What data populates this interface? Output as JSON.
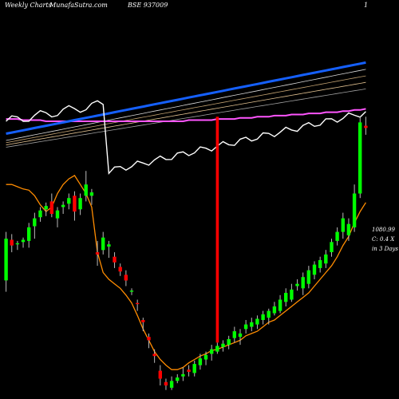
{
  "header": {
    "left": "Weekly Charts",
    "center": "MunafaSutra.com",
    "symbol": "BSE 937009",
    "right": "1"
  },
  "annotation": {
    "price": "1080.99",
    "change": "C: 0.4  X",
    "period": "in 3 Days"
  },
  "colors": {
    "up": "#00ff00",
    "down": "#ff0000",
    "ema_short": "#ff8c00",
    "white_line": "#ffffff",
    "blue_ma": "#1560ff",
    "magenta_ma": "#ff55ff"
  },
  "chart_data": {
    "type": "candlestick",
    "y_scale": "price",
    "candles": [
      {
        "o": 275,
        "h": 318,
        "l": 265,
        "c": 312
      },
      {
        "o": 311,
        "h": 316,
        "l": 300,
        "c": 306
      },
      {
        "o": 307,
        "h": 310,
        "l": 302,
        "c": 308
      },
      {
        "o": 309,
        "h": 313,
        "l": 304,
        "c": 311
      },
      {
        "o": 310,
        "h": 326,
        "l": 304,
        "c": 322
      },
      {
        "o": 323,
        "h": 335,
        "l": 312,
        "c": 330
      },
      {
        "o": 331,
        "h": 340,
        "l": 327,
        "c": 337
      },
      {
        "o": 338,
        "h": 344,
        "l": 332,
        "c": 341
      },
      {
        "o": 345,
        "h": 352,
        "l": 331,
        "c": 334
      },
      {
        "o": 330,
        "h": 340,
        "l": 322,
        "c": 337
      },
      {
        "o": 340,
        "h": 345,
        "l": 334,
        "c": 342
      },
      {
        "o": 343,
        "h": 352,
        "l": 338,
        "c": 348
      },
      {
        "o": 350,
        "h": 354,
        "l": 328,
        "c": 336
      },
      {
        "o": 338,
        "h": 352,
        "l": 333,
        "c": 348
      },
      {
        "o": 350,
        "h": 372,
        "l": 345,
        "c": 360
      },
      {
        "o": 350,
        "h": 356,
        "l": 342,
        "c": 353
      },
      {
        "o": 300,
        "h": 310,
        "l": 288,
        "c": 298
      },
      {
        "o": 302,
        "h": 318,
        "l": 298,
        "c": 313
      },
      {
        "o": 305,
        "h": 310,
        "l": 295,
        "c": 307
      },
      {
        "o": 296,
        "h": 300,
        "l": 286,
        "c": 291
      },
      {
        "o": 287,
        "h": 290,
        "l": 279,
        "c": 283
      },
      {
        "o": 280,
        "h": 284,
        "l": 270,
        "c": 275
      },
      {
        "o": 265,
        "h": 268,
        "l": 262,
        "c": 266
      },
      {
        "o": 255,
        "h": 258,
        "l": 248,
        "c": 254
      },
      {
        "o": 240,
        "h": 242,
        "l": 230,
        "c": 238
      },
      {
        "o": 225,
        "h": 228,
        "l": 215,
        "c": 222
      },
      {
        "o": 210,
        "h": 214,
        "l": 202,
        "c": 208
      },
      {
        "o": 195,
        "h": 200,
        "l": 182,
        "c": 188
      },
      {
        "o": 185,
        "h": 188,
        "l": 178,
        "c": 182
      },
      {
        "o": 180,
        "h": 190,
        "l": 178,
        "c": 186
      },
      {
        "o": 186,
        "h": 192,
        "l": 184,
        "c": 189
      },
      {
        "o": 190,
        "h": 198,
        "l": 186,
        "c": 192
      },
      {
        "o": 196,
        "h": 200,
        "l": 190,
        "c": 194
      },
      {
        "o": 193,
        "h": 204,
        "l": 190,
        "c": 201
      },
      {
        "o": 200,
        "h": 210,
        "l": 196,
        "c": 206
      },
      {
        "o": 205,
        "h": 212,
        "l": 200,
        "c": 209
      },
      {
        "o": 210,
        "h": 218,
        "l": 204,
        "c": 214
      },
      {
        "o": 212,
        "h": 220,
        "l": 210,
        "c": 217
      },
      {
        "o": 216,
        "h": 222,
        "l": 212,
        "c": 219
      },
      {
        "o": 218,
        "h": 226,
        "l": 214,
        "c": 223
      },
      {
        "o": 224,
        "h": 234,
        "l": 220,
        "c": 230
      },
      {
        "o": 225,
        "h": 232,
        "l": 218,
        "c": 228
      },
      {
        "o": 232,
        "h": 240,
        "l": 228,
        "c": 236
      },
      {
        "o": 234,
        "h": 242,
        "l": 230,
        "c": 238
      },
      {
        "o": 236,
        "h": 244,
        "l": 232,
        "c": 241
      },
      {
        "o": 240,
        "h": 248,
        "l": 236,
        "c": 245
      },
      {
        "o": 242,
        "h": 250,
        "l": 236,
        "c": 248
      },
      {
        "o": 246,
        "h": 256,
        "l": 244,
        "c": 252
      },
      {
        "o": 248,
        "h": 262,
        "l": 246,
        "c": 258
      },
      {
        "o": 256,
        "h": 268,
        "l": 252,
        "c": 264
      },
      {
        "o": 258,
        "h": 272,
        "l": 256,
        "c": 267
      },
      {
        "o": 270,
        "h": 276,
        "l": 266,
        "c": 272
      },
      {
        "o": 268,
        "h": 282,
        "l": 262,
        "c": 278
      },
      {
        "o": 272,
        "h": 288,
        "l": 268,
        "c": 284
      },
      {
        "o": 280,
        "h": 292,
        "l": 276,
        "c": 289
      },
      {
        "o": 286,
        "h": 296,
        "l": 282,
        "c": 293
      },
      {
        "o": 290,
        "h": 302,
        "l": 286,
        "c": 298
      },
      {
        "o": 300,
        "h": 312,
        "l": 296,
        "c": 309
      },
      {
        "o": 310,
        "h": 322,
        "l": 306,
        "c": 318
      },
      {
        "o": 318,
        "h": 335,
        "l": 312,
        "c": 330
      },
      {
        "o": 315,
        "h": 330,
        "l": 310,
        "c": 325
      },
      {
        "o": 322,
        "h": 360,
        "l": 318,
        "c": 352
      },
      {
        "o": 352,
        "h": 420,
        "l": 348,
        "c": 415
      },
      {
        "o": 412,
        "h": 420,
        "l": 404,
        "c": 410
      }
    ],
    "spike_candles": [
      {
        "index": 37,
        "o": 226,
        "h": 420,
        "l": 220,
        "c": 226,
        "dir": "down"
      }
    ],
    "series": [
      {
        "values": [
          360,
          360,
          358,
          356,
          355,
          350,
          342,
          336,
          340,
          352,
          360,
          365,
          368,
          360,
          352,
          340,
          300,
          282,
          276,
          272,
          268,
          262,
          255,
          244,
          232,
          222,
          212,
          205,
          200,
          196,
          196,
          198,
          202,
          205,
          208,
          210,
          213,
          214,
          216,
          218,
          220,
          222,
          226,
          228,
          230,
          234,
          238,
          240,
          244,
          248,
          252,
          256,
          260,
          264,
          270,
          276,
          282,
          288,
          296,
          306,
          314,
          326,
          336,
          344
        ]
      },
      {
        "values": [
          405,
          406,
          407,
          408,
          409,
          410,
          411,
          412,
          413,
          414,
          415,
          416,
          417,
          418,
          419,
          420,
          421,
          422,
          423,
          424,
          425,
          426,
          427,
          428,
          429,
          430,
          431,
          432,
          433,
          434,
          435,
          436,
          437,
          438,
          439,
          440,
          441,
          442,
          443,
          444,
          445,
          446,
          447,
          448,
          449,
          450,
          451,
          452,
          453,
          454,
          455,
          456,
          457,
          458,
          459,
          460,
          461,
          462,
          463,
          464,
          465,
          466,
          467,
          468
        ]
      },
      {
        "values": [
          418,
          418,
          418,
          417,
          417,
          417,
          417,
          416,
          416,
          416,
          416,
          416,
          416,
          416,
          416,
          416,
          416,
          416,
          416,
          416,
          416,
          416,
          416,
          416,
          416,
          416,
          416,
          416,
          416,
          416,
          416,
          416,
          417,
          417,
          417,
          417,
          417,
          418,
          418,
          418,
          418,
          419,
          419,
          419,
          420,
          420,
          420,
          421,
          421,
          421,
          422,
          422,
          422,
          423,
          423,
          423,
          424,
          424,
          424,
          425,
          425,
          426,
          426,
          427
        ]
      }
    ]
  }
}
